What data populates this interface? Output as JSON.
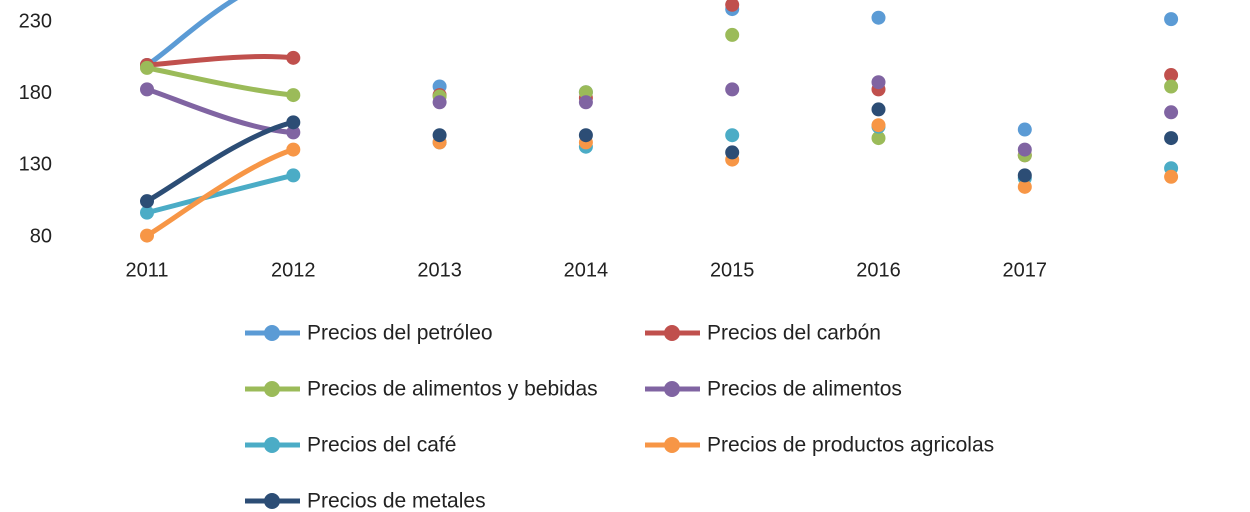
{
  "chart_data": {
    "type": "line",
    "categories": [
      "2011",
      "2012",
      "2013",
      "2014",
      "2015",
      "2016",
      "2017",
      null
    ],
    "series": [
      {
        "name": "Precios del petróleo",
        "color": "#5b9bd5",
        "values": [
          200,
          260,
          185,
          181,
          239,
          233,
          155,
          232
        ]
      },
      {
        "name": "Precios del carbón",
        "color": "#c0504d",
        "values": [
          200,
          205,
          179,
          177,
          242,
          183,
          137,
          193
        ]
      },
      {
        "name": "Precios de alimentos y bebidas",
        "color": "#9bbb59",
        "values": [
          198,
          179,
          178,
          181,
          221,
          149,
          137,
          185
        ]
      },
      {
        "name": "Precios de alimentos",
        "color": "#8064a2",
        "values": [
          183,
          153,
          174,
          174,
          183,
          188,
          141,
          167
        ]
      },
      {
        "name": "Precios del café",
        "color": "#4bacc6",
        "values": [
          97,
          123,
          146,
          143,
          151,
          157,
          121,
          128
        ]
      },
      {
        "name": "Precios de productos agricolas",
        "color": "#f79646",
        "values": [
          81,
          141,
          146,
          146,
          134,
          158,
          115,
          122
        ]
      },
      {
        "name": "Precios de metales",
        "color": "#2c4d75",
        "values": [
          105,
          160,
          151,
          151,
          139,
          169,
          123,
          149
        ]
      }
    ],
    "ylim": [
      80,
      230
    ],
    "yticks": [
      80,
      130,
      180,
      230
    ],
    "grid": false
  }
}
